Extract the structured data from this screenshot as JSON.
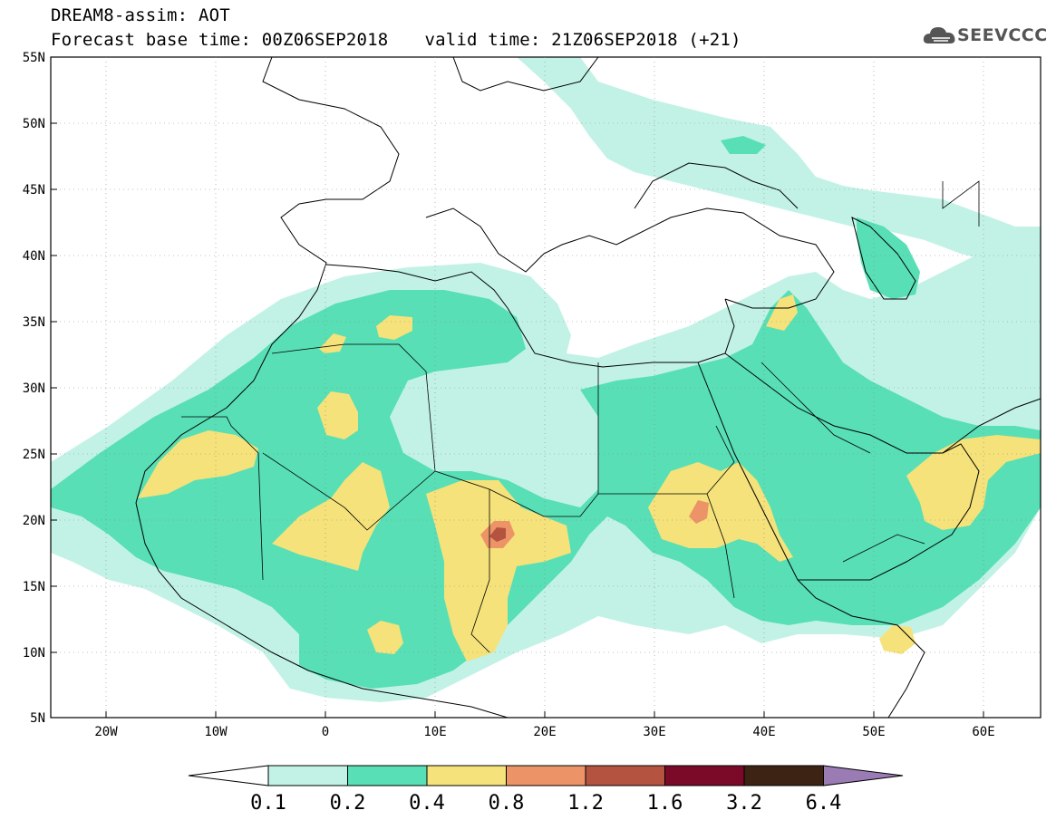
{
  "header": {
    "title_line1": "DREAM8-assim: AOT",
    "base_time": "Forecast base time: 00Z06SEP2018",
    "valid_time": "valid time: 21Z06SEP2018 (+21)",
    "logo_text": "SEEVCCC"
  },
  "axes": {
    "lat_labels": [
      "55N",
      "50N",
      "45N",
      "40N",
      "35N",
      "30N",
      "25N",
      "20N",
      "15N",
      "10N",
      "5N"
    ],
    "lon_labels": [
      "20W",
      "10W",
      "0",
      "10E",
      "20E",
      "30E",
      "40E",
      "50E",
      "60E"
    ]
  },
  "colorbar": {
    "labels": [
      "0.1",
      "0.2",
      "0.4",
      "0.8",
      "1.2",
      "1.6",
      "3.2",
      "6.4"
    ],
    "colors": [
      "#ffffff",
      "#c2f2e6",
      "#58dfb5",
      "#f5e27a",
      "#ec9468",
      "#b35340",
      "#7a0a27",
      "#3c2314",
      "#9b7bb4"
    ]
  },
  "colors": {
    "aot_0_1": "#c2f2e6",
    "aot_0_2": "#58dfb5",
    "aot_0_4": "#f5e27a",
    "aot_0_8": "#ec9468",
    "aot_1_2": "#b35340"
  }
}
